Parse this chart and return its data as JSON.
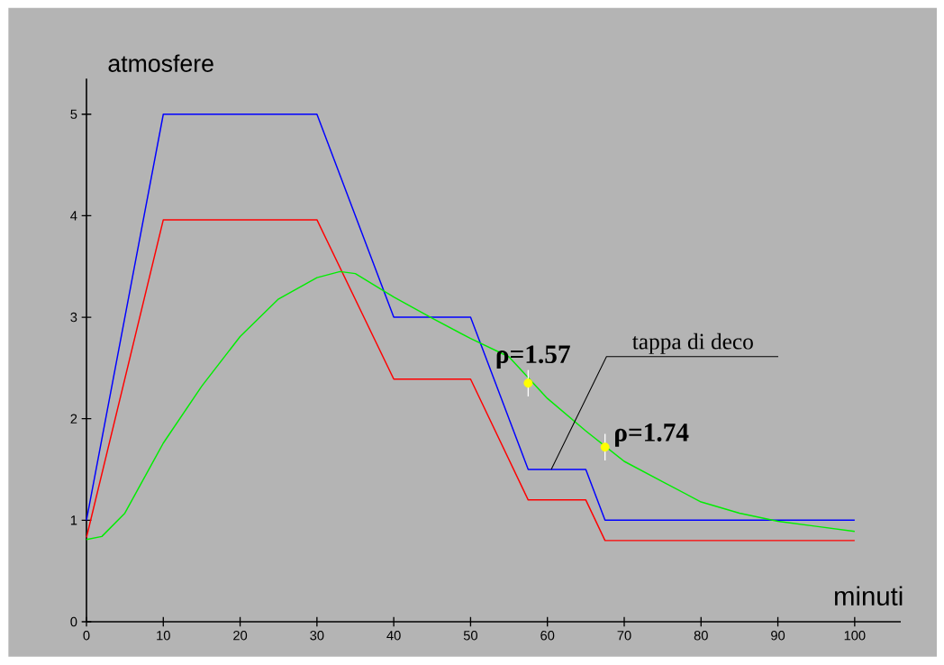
{
  "chart_data": {
    "type": "line",
    "xlabel": "minuti",
    "ylabel": "atmosfere",
    "xlim": [
      0,
      106
    ],
    "ylim": [
      0,
      5.35
    ],
    "xticks": [
      0,
      10,
      20,
      30,
      40,
      50,
      60,
      70,
      80,
      90,
      100
    ],
    "yticks": [
      0,
      1,
      2,
      3,
      4,
      5
    ],
    "grid": false,
    "marker": "none",
    "line_style": "solid",
    "series": [
      {
        "color": "#0000ff",
        "x": [
          0,
          10,
          30,
          40,
          50,
          57.5,
          65,
          67.5,
          100
        ],
        "values": [
          1.0,
          5.0,
          5.0,
          3.0,
          3.0,
          1.5,
          1.5,
          1.0,
          1.0
        ]
      },
      {
        "color": "#ff0000",
        "x": [
          0,
          10,
          30,
          40,
          50,
          57.5,
          65,
          67.5,
          100
        ],
        "values": [
          0.83,
          3.96,
          3.96,
          2.39,
          2.39,
          1.2,
          1.2,
          0.8,
          0.8
        ]
      },
      {
        "color": "#00ee00",
        "x": [
          0,
          2,
          5,
          10,
          15,
          20,
          25,
          30,
          33,
          35,
          40,
          45,
          50,
          55,
          60,
          65,
          70,
          75,
          80,
          85,
          90,
          95,
          100
        ],
        "values": [
          0.81,
          0.84,
          1.07,
          1.76,
          2.32,
          2.81,
          3.18,
          3.39,
          3.45,
          3.43,
          3.2,
          2.99,
          2.79,
          2.61,
          2.2,
          1.88,
          1.58,
          1.38,
          1.18,
          1.07,
          0.99,
          0.94,
          0.89
        ]
      },
      {
        "type": "scatter",
        "marker": "circle",
        "color": "#ffff00",
        "x": [
          57.5,
          67.5
        ],
        "values": [
          2.35,
          1.72
        ],
        "errors": [
          0.13,
          0.13
        ]
      }
    ],
    "annotations": [
      {
        "text": "tappa di deco",
        "x": 60.5,
        "y": 1.5
      },
      {
        "text": "ρ=1.57",
        "x": 57.5,
        "y": 2.35
      },
      {
        "text": "ρ=1.74",
        "x": 67.5,
        "y": 1.72
      }
    ]
  }
}
